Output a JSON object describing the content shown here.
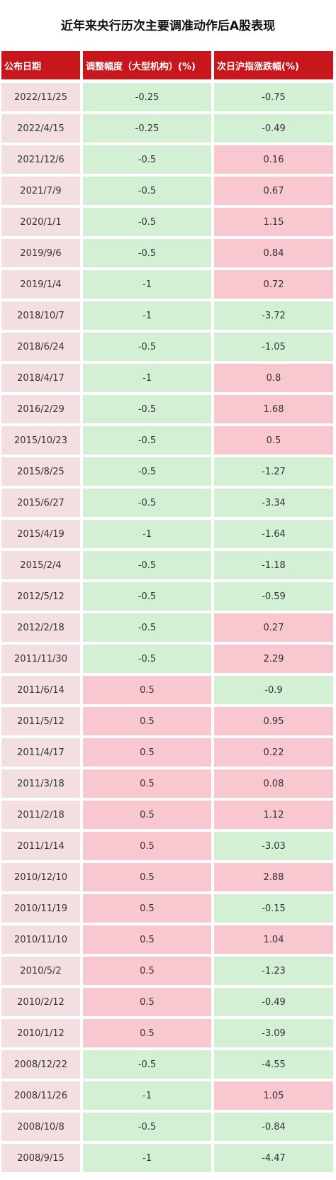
{
  "title": "近年来央行历次主要调准动作后A股表现",
  "table": {
    "headers": [
      "公布日期",
      "调整幅度（大型机构）(%)",
      "次日沪指涨跌幅(%)"
    ],
    "rows": [
      [
        "2022/11/25",
        "-0.25",
        "-0.75"
      ],
      [
        "2022/4/15",
        "-0.25",
        "-0.49"
      ],
      [
        "2021/12/6",
        "-0.5",
        "0.16"
      ],
      [
        "2021/7/9",
        "-0.5",
        "0.67"
      ],
      [
        "2020/1/1",
        "-0.5",
        "1.15"
      ],
      [
        "2019/9/6",
        "-0.5",
        "0.84"
      ],
      [
        "2019/1/4",
        "-1",
        "0.72"
      ],
      [
        "2018/10/7",
        "-1",
        "-3.72"
      ],
      [
        "2018/6/24",
        "-0.5",
        "-1.05"
      ],
      [
        "2018/4/17",
        "-1",
        "0.8"
      ],
      [
        "2016/2/29",
        "-0.5",
        "1.68"
      ],
      [
        "2015/10/23",
        "-0.5",
        "0.5"
      ],
      [
        "2015/8/25",
        "-0.5",
        "-1.27"
      ],
      [
        "2015/6/27",
        "-0.5",
        "-3.34"
      ],
      [
        "2015/4/19",
        "-1",
        "-1.64"
      ],
      [
        "2015/2/4",
        "-0.5",
        "-1.18"
      ],
      [
        "2012/5/12",
        "-0.5",
        "-0.59"
      ],
      [
        "2012/2/18",
        "-0.5",
        "0.27"
      ],
      [
        "2011/11/30",
        "-0.5",
        "2.29"
      ],
      [
        "2011/6/14",
        "0.5",
        "-0.9"
      ],
      [
        "2011/5/12",
        "0.5",
        "0.95"
      ],
      [
        "2011/4/17",
        "0.5",
        "0.22"
      ],
      [
        "2011/3/18",
        "0.5",
        "0.08"
      ],
      [
        "2011/2/18",
        "0.5",
        "1.12"
      ],
      [
        "2011/1/14",
        "0.5",
        "-3.03"
      ],
      [
        "2010/12/10",
        "0.5",
        "2.88"
      ],
      [
        "2010/11/19",
        "0.5",
        "-0.15"
      ],
      [
        "2010/11/10",
        "0.5",
        "1.04"
      ],
      [
        "2010/5/2",
        "0.5",
        "-1.23"
      ],
      [
        "2010/2/12",
        "0.5",
        "-0.49"
      ],
      [
        "2010/1/12",
        "0.5",
        "-3.09"
      ],
      [
        "2008/12/22",
        "-0.5",
        "-4.55"
      ],
      [
        "2008/11/26",
        "-1",
        "1.05"
      ],
      [
        "2008/10/8",
        "-0.5",
        "-0.84"
      ],
      [
        "2008/9/15",
        "-1",
        "-4.47"
      ]
    ]
  }
}
